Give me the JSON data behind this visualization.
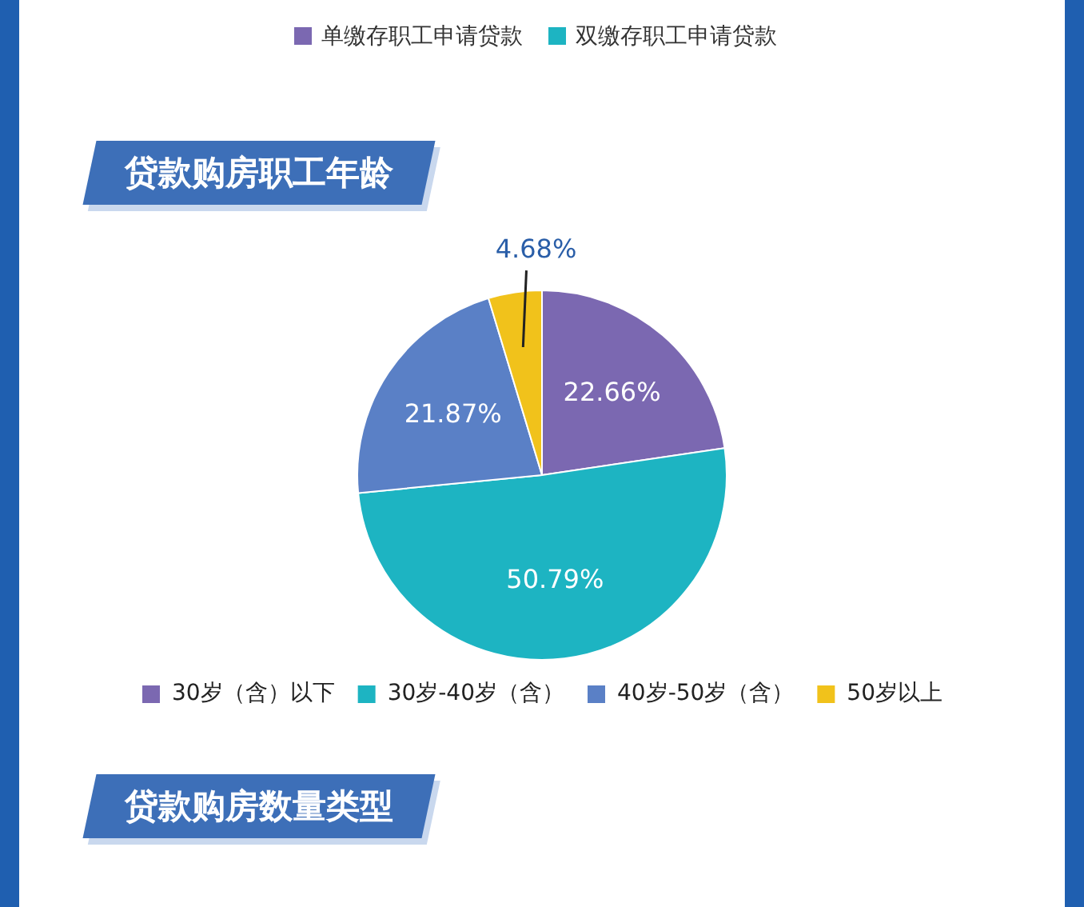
{
  "chart_data": {
    "type": "pie",
    "title": "贷款购房职工年龄",
    "categories": [
      "30岁（含）以下",
      "30岁-40岁（含）",
      "40岁-50岁（含）",
      "50岁以上"
    ],
    "values": [
      22.66,
      50.79,
      21.87,
      4.68
    ],
    "colors": [
      "#7b68b1",
      "#1db4c2",
      "#5a80c6",
      "#f1c21b"
    ],
    "value_labels": [
      "22.66%",
      "50.79%",
      "21.87%",
      "4.68%"
    ],
    "legend": "bottom",
    "annotations": [
      "单缴存职工申请贷款",
      "双缴存职工申请贷款",
      "贷款购房数量类型"
    ]
  }
}
